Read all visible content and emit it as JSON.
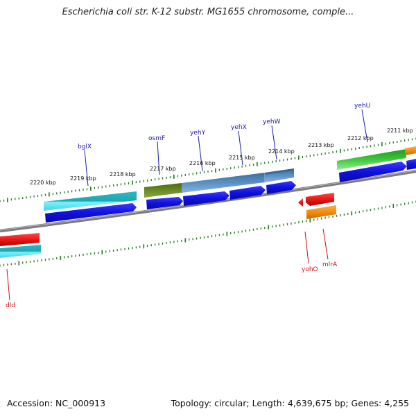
{
  "title": "Escherichia coli str. K-12 substr. MG1655 chromosome, comple...",
  "footer": {
    "accession": "Accession: NC_000913",
    "summary": "Topology: circular; Length: 4,639,675 bp; Genes: 4,255"
  },
  "kbp_labels": [
    "2220 kbp",
    "2219 kbp",
    "2218 kbp",
    "2217 kbp",
    "2216 kbp",
    "2215 kbp",
    "2214 kbp",
    "2213 kbp",
    "2212 kbp",
    "2211 kbp"
  ],
  "forward_genes": [
    "bglX",
    "osmF",
    "yehY",
    "yehX",
    "yehW",
    "yehU"
  ],
  "reverse_genes": [
    "yohO",
    "mlrA",
    "dld"
  ],
  "colors": {
    "backbone": "#808080",
    "ticks": "#1c7a1c",
    "cds": "#1010e0",
    "forward_label": "#1a1aa8",
    "reverse_label": "#cc1111",
    "cyan": "#26c6d2",
    "olive": "#6a8a22",
    "steel": "#4f86b8",
    "green": "#3cc83c",
    "red": "#e81818",
    "orange": "#f08c10"
  }
}
